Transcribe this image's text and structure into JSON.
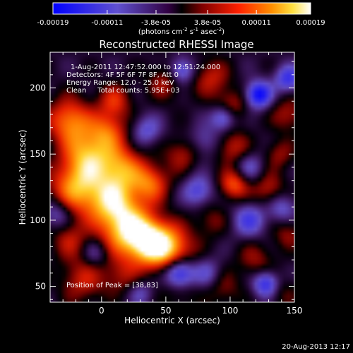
{
  "chart_data": {
    "type": "heatmap",
    "title": "Reconstructed RHESSI Image",
    "xlabel": "Heliocentric X (arcsec)",
    "ylabel": "Heliocentric Y (arcsec)",
    "xlim": [
      -40,
      150
    ],
    "ylim": [
      38,
      227
    ],
    "x_ticks": [
      0,
      50,
      100,
      150
    ],
    "y_ticks": [
      50,
      100,
      150,
      200
    ],
    "colorbar": {
      "ticks": [
        "-0.00019",
        "-0.00011",
        "-3.8e-05",
        "3.8e-05",
        "0.00011",
        "0.00019"
      ],
      "tick_values": [
        -0.00019,
        -0.00011,
        -3.8e-05,
        3.8e-05,
        0.00011,
        0.00019
      ],
      "range": [
        -0.00019,
        0.00019
      ],
      "unit_label": "(photons cm",
      "unit_label_exp1": "-2",
      "unit_label_mid": " s",
      "unit_label_exp2": "-1",
      "unit_label_mid2": " asec",
      "unit_label_exp3": "-2",
      "unit_label_end": ")"
    },
    "annotations": {
      "time_range": "1-Aug-2011 12:47:52.000 to 12:51:24.000",
      "detectors": "Detectors: 4F 5F 6F 7F 8F, Att 0",
      "energy": "Energy Range: 12.0 - 25.0 keV",
      "clean": "Clean     Total counts: 5.95E+03",
      "peak": "Position of Peak = [38,83]"
    },
    "peak": [
      38,
      83
    ],
    "blobs": [
      {
        "x": 38,
        "y": 83,
        "v": 1.0,
        "s": 12
      },
      {
        "x": 20,
        "y": 93,
        "v": 0.85,
        "s": 14
      },
      {
        "x": 55,
        "y": 78,
        "v": 0.65,
        "s": 12
      },
      {
        "x": 8,
        "y": 115,
        "v": 0.8,
        "s": 14
      },
      {
        "x": -20,
        "y": 125,
        "v": 0.75,
        "s": 14
      },
      {
        "x": -10,
        "y": 150,
        "v": 0.75,
        "s": 13
      },
      {
        "x": 15,
        "y": 140,
        "v": 0.65,
        "s": 12
      },
      {
        "x": 38,
        "y": 128,
        "v": 0.6,
        "s": 10
      },
      {
        "x": -25,
        "y": 175,
        "v": 0.7,
        "s": 12
      },
      {
        "x": 5,
        "y": 168,
        "v": 0.5,
        "s": 10
      },
      {
        "x": 10,
        "y": 190,
        "v": 0.45,
        "s": 9
      },
      {
        "x": 62,
        "y": 150,
        "v": 0.35,
        "s": 9
      },
      {
        "x": 50,
        "y": 205,
        "v": 0.35,
        "s": 10
      },
      {
        "x": 85,
        "y": 208,
        "v": 0.4,
        "s": 10
      },
      {
        "x": 100,
        "y": 185,
        "v": 0.45,
        "s": 9
      },
      {
        "x": 102,
        "y": 155,
        "v": 0.4,
        "s": 9
      },
      {
        "x": 103,
        "y": 127,
        "v": 0.6,
        "s": 8
      },
      {
        "x": 130,
        "y": 123,
        "v": 0.4,
        "s": 9
      },
      {
        "x": 145,
        "y": 180,
        "v": 0.35,
        "s": 9
      },
      {
        "x": 138,
        "y": 150,
        "v": 0.3,
        "s": 8
      },
      {
        "x": 85,
        "y": 100,
        "v": 0.25,
        "s": 9
      },
      {
        "x": 120,
        "y": 70,
        "v": 0.3,
        "s": 10
      },
      {
        "x": 145,
        "y": 90,
        "v": 0.3,
        "s": 8
      },
      {
        "x": -25,
        "y": 85,
        "v": 0.35,
        "s": 10
      },
      {
        "x": -15,
        "y": 55,
        "v": 0.4,
        "s": 12
      },
      {
        "x": 15,
        "y": 58,
        "v": 0.3,
        "s": 10
      },
      {
        "x": 60,
        "y": 45,
        "v": 0.2,
        "s": 10
      },
      {
        "x": 95,
        "y": 48,
        "v": 0.25,
        "s": 10
      },
      {
        "x": 140,
        "y": 45,
        "v": 0.2,
        "s": 9
      },
      {
        "x": 60,
        "y": 60,
        "v": -0.85,
        "s": 8
      },
      {
        "x": 122,
        "y": 195,
        "v": -0.85,
        "s": 7
      },
      {
        "x": 95,
        "y": 178,
        "v": -0.7,
        "s": 7
      },
      {
        "x": 145,
        "y": 207,
        "v": -0.6,
        "s": 7
      },
      {
        "x": 62,
        "y": 213,
        "v": -0.6,
        "s": 7
      },
      {
        "x": 128,
        "y": 52,
        "v": -0.7,
        "s": 7
      },
      {
        "x": 75,
        "y": 122,
        "v": -0.5,
        "s": 8
      },
      {
        "x": 115,
        "y": 100,
        "v": -0.5,
        "s": 9
      },
      {
        "x": 140,
        "y": 110,
        "v": -0.4,
        "s": 8
      },
      {
        "x": 35,
        "y": 168,
        "v": -0.4,
        "s": 8
      },
      {
        "x": -35,
        "y": 105,
        "v": -0.4,
        "s": 8
      },
      {
        "x": 82,
        "y": 60,
        "v": -0.35,
        "s": 8
      },
      {
        "x": 115,
        "y": 140,
        "v": -0.35,
        "s": 8
      },
      {
        "x": -5,
        "y": 75,
        "v": -0.3,
        "s": 7
      },
      {
        "x": 80,
        "y": 160,
        "v": -0.3,
        "s": 8
      },
      {
        "x": 30,
        "y": 45,
        "v": -0.3,
        "s": 7
      }
    ]
  },
  "footer": {
    "timestamp": "20-Aug-2013 12:17"
  }
}
